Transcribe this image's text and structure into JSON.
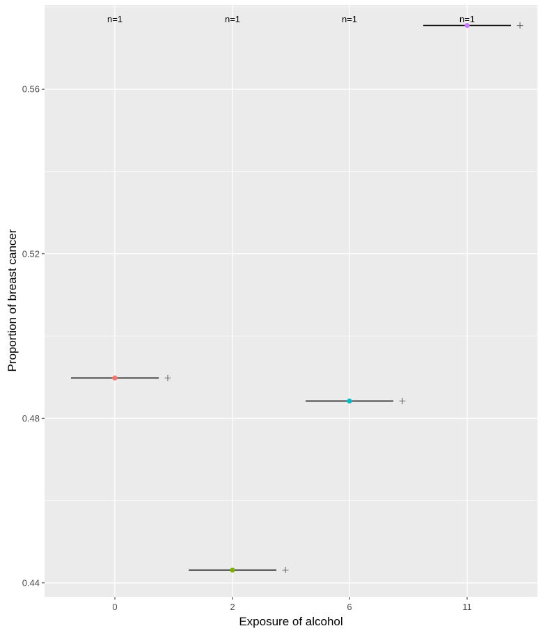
{
  "chart_data": {
    "type": "scatter",
    "title": "",
    "xlabel": "Exposure of alcohol",
    "ylabel": "Proportion of breast cancer",
    "categories": [
      "0",
      "2",
      "6",
      "11"
    ],
    "yticks": [
      "0.44",
      "0.48",
      "0.52",
      "0.56"
    ],
    "ylim": [
      0.4366,
      0.5805
    ],
    "grid": true,
    "legend": "none",
    "points": [
      {
        "category": "0",
        "y": 0.4898,
        "color": "#F8766D",
        "n_label": "n=1"
      },
      {
        "category": "2",
        "y": 0.4431,
        "color": "#7CAE00",
        "n_label": "n=1"
      },
      {
        "category": "6",
        "y": 0.4842,
        "color": "#00BFC4",
        "n_label": "n=1"
      },
      {
        "category": "11",
        "y": 0.5755,
        "color": "#C77CFF",
        "n_label": "n=1"
      }
    ],
    "panel_background": "#EBEBEB",
    "grid_color": "#FFFFFF",
    "segment_color": "#000000",
    "plus_color": "#666666"
  }
}
